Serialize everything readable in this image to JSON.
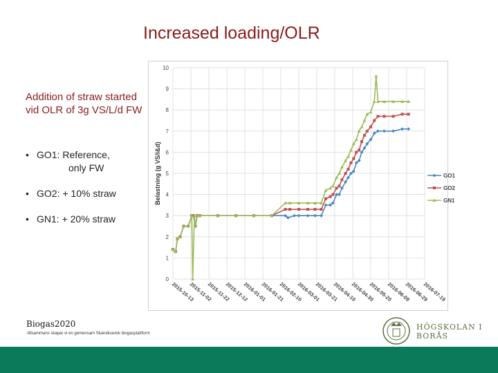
{
  "slide": {
    "title": "Increased loading/OLR",
    "intro": "Addition of straw started vid OLR of 3g VS/L/d FW",
    "bullets": [
      {
        "main": "GO1: Reference,",
        "sub": "only FW"
      },
      {
        "main": "GO2: + 10% straw",
        "sub": ""
      },
      {
        "main": "GN1: + 20% straw",
        "sub": ""
      }
    ],
    "bullet_glyph": "•",
    "footer_brand": "Biogas2020",
    "footer_tagline": "-tillsammans skapar vi en gemensam Skandinavisk biogasplattform",
    "logo_text": "HÖGSKOLAN I BORÅS",
    "colors": {
      "accent": "#8b1a1a",
      "bar": "#0b7a5a",
      "GO1": "#4a86c5",
      "GO2": "#c0504d",
      "GN1": "#9bbb59"
    }
  },
  "chart_data": {
    "type": "line",
    "ylabel": "Belastning (g VS/l&d)",
    "ylim": [
      0,
      10
    ],
    "yticks": [
      0,
      1,
      2,
      3,
      4,
      5,
      6,
      7,
      8,
      9,
      10
    ],
    "xlim": [
      0,
      280
    ],
    "xticks": [
      {
        "day": 0,
        "label": "2015-10-13"
      },
      {
        "day": 20,
        "label": "2015-11-02"
      },
      {
        "day": 40,
        "label": "2015-11-22"
      },
      {
        "day": 60,
        "label": "2015-12-12"
      },
      {
        "day": 80,
        "label": "2016-01-01"
      },
      {
        "day": 100,
        "label": "2016-01-21"
      },
      {
        "day": 120,
        "label": "2016-02-10"
      },
      {
        "day": 140,
        "label": "2016-03-01"
      },
      {
        "day": 160,
        "label": "2016-03-21"
      },
      {
        "day": 180,
        "label": "2016-04-10"
      },
      {
        "day": 200,
        "label": "2016-04-30"
      },
      {
        "day": 220,
        "label": "2016-05-20"
      },
      {
        "day": 240,
        "label": "2016-06-09"
      },
      {
        "day": 260,
        "label": "2016-06-29"
      },
      {
        "day": 280,
        "label": "2016-07-19"
      }
    ],
    "series": [
      {
        "name": "GO1",
        "color": "#4a86c5",
        "marker": "diamond",
        "x": [
          0,
          3,
          5,
          8,
          12,
          17,
          21,
          23,
          25,
          27,
          30,
          50,
          70,
          90,
          110,
          125,
          128,
          135,
          140,
          150,
          158,
          165,
          170,
          175,
          178,
          182,
          185,
          188,
          192,
          195,
          198,
          201,
          204,
          207,
          210,
          213,
          216,
          220,
          224,
          228,
          235,
          245,
          255,
          262
        ],
        "y": [
          1.4,
          1.3,
          1.9,
          2.0,
          2.5,
          2.5,
          3.0,
          3.0,
          2.5,
          3.0,
          3.0,
          3.0,
          3.0,
          3.0,
          3.0,
          3.0,
          2.9,
          3.0,
          3.0,
          3.0,
          3.0,
          3.0,
          3.5,
          3.5,
          3.6,
          4.0,
          4.0,
          4.3,
          4.6,
          4.8,
          5.0,
          5.1,
          5.5,
          5.6,
          6.0,
          6.2,
          6.4,
          6.6,
          6.9,
          7.0,
          7.0,
          7.0,
          7.1,
          7.1
        ]
      },
      {
        "name": "GO2",
        "color": "#c0504d",
        "marker": "square",
        "x": [
          0,
          3,
          5,
          8,
          12,
          17,
          21,
          23,
          25,
          27,
          30,
          50,
          70,
          90,
          110,
          125,
          130,
          140,
          150,
          158,
          165,
          170,
          175,
          178,
          182,
          185,
          188,
          192,
          195,
          198,
          201,
          204,
          207,
          210,
          213,
          216,
          220,
          224,
          228,
          235,
          245,
          255,
          262
        ],
        "y": [
          1.4,
          1.3,
          1.9,
          2.0,
          2.5,
          2.5,
          3.0,
          3.0,
          2.5,
          3.0,
          3.0,
          3.0,
          3.0,
          3.0,
          3.0,
          3.3,
          3.3,
          3.3,
          3.3,
          3.3,
          3.3,
          3.8,
          3.9,
          4.0,
          4.3,
          4.4,
          4.7,
          5.0,
          5.2,
          5.5,
          5.7,
          6.0,
          6.1,
          6.5,
          6.8,
          7.0,
          7.2,
          7.5,
          7.7,
          7.7,
          7.7,
          7.8,
          7.8
        ]
      },
      {
        "name": "GN1",
        "color": "#9bbb59",
        "marker": "triangle",
        "x": [
          0,
          3,
          5,
          8,
          12,
          17,
          21,
          22,
          24,
          25,
          27,
          30,
          50,
          70,
          90,
          110,
          125,
          130,
          140,
          150,
          158,
          165,
          170,
          175,
          178,
          182,
          185,
          188,
          192,
          195,
          198,
          201,
          204,
          207,
          210,
          213,
          216,
          220,
          224,
          226,
          228,
          235,
          245,
          255,
          262
        ],
        "y": [
          1.4,
          1.3,
          1.9,
          2.0,
          2.5,
          2.5,
          3.0,
          0.0,
          3.0,
          2.5,
          3.0,
          3.0,
          3.0,
          3.0,
          3.0,
          3.0,
          3.6,
          3.6,
          3.6,
          3.6,
          3.6,
          3.6,
          4.2,
          4.3,
          4.4,
          4.8,
          5.0,
          5.3,
          5.6,
          5.8,
          6.1,
          6.4,
          6.6,
          7.0,
          7.2,
          7.5,
          7.8,
          7.9,
          8.4,
          9.6,
          8.4,
          8.4,
          8.4,
          8.4,
          8.4
        ]
      }
    ]
  }
}
